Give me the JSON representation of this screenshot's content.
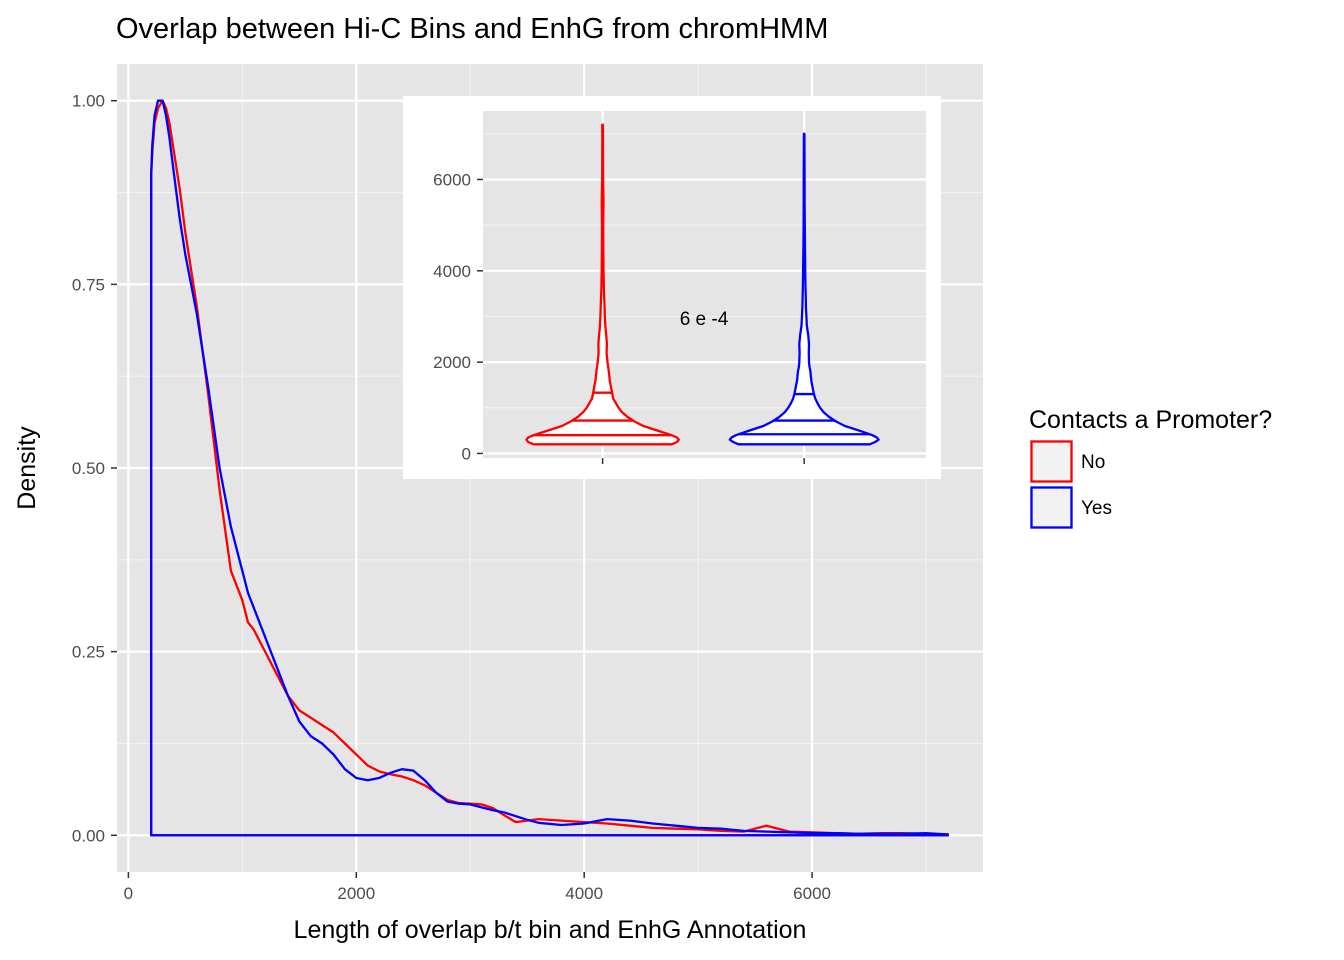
{
  "chart_data": [
    {
      "type": "line",
      "title": "Overlap between Hi-C Bins and EnhG from chromHMM",
      "xlabel": "Length of overlap b/t bin and EnhG Annotation",
      "ylabel": "Density",
      "xlim": [
        -100,
        7500
      ],
      "ylim": [
        -0.05,
        1.05
      ],
      "x_ticks": [
        0,
        2000,
        4000,
        6000
      ],
      "y_ticks": [
        0.0,
        0.25,
        0.5,
        0.75,
        1.0
      ],
      "x_tick_labels": [
        "0",
        "2000",
        "4000",
        "6000"
      ],
      "y_tick_labels": [
        "0.00",
        "0.25",
        "0.50",
        "0.75",
        "1.00"
      ],
      "grid": true,
      "legend": {
        "title": "Contacts a Promoter?",
        "position": "right",
        "entries": [
          {
            "label": "No",
            "color": "#ff0000"
          },
          {
            "label": "Yes",
            "color": "#0000ff"
          }
        ]
      },
      "series": [
        {
          "name": "No",
          "color": "#ff0000",
          "x": [
            200,
            210,
            230,
            260,
            300,
            330,
            360,
            400,
            450,
            500,
            550,
            600,
            700,
            800,
            900,
            1000,
            1050,
            1100,
            1200,
            1300,
            1400,
            1500,
            1600,
            1700,
            1800,
            1900,
            2000,
            2100,
            2200,
            2300,
            2400,
            2500,
            2600,
            2700,
            2800,
            2900,
            3000,
            3100,
            3200,
            3300,
            3400,
            3500,
            3600,
            3800,
            4000,
            4200,
            4400,
            4600,
            4800,
            5000,
            5200,
            5400,
            5600,
            5800,
            6000,
            6200,
            6400,
            6600,
            6800,
            7000,
            7200
          ],
          "y": [
            0.9,
            0.93,
            0.97,
            0.99,
            1.0,
            0.99,
            0.97,
            0.93,
            0.88,
            0.82,
            0.77,
            0.72,
            0.6,
            0.47,
            0.36,
            0.32,
            0.29,
            0.28,
            0.25,
            0.22,
            0.19,
            0.17,
            0.16,
            0.15,
            0.14,
            0.125,
            0.11,
            0.095,
            0.087,
            0.083,
            0.08,
            0.075,
            0.068,
            0.058,
            0.048,
            0.044,
            0.043,
            0.042,
            0.037,
            0.027,
            0.018,
            0.02,
            0.022,
            0.02,
            0.018,
            0.016,
            0.013,
            0.01,
            0.009,
            0.008,
            0.006,
            0.005,
            0.013,
            0.005,
            0.004,
            0.003,
            0.002,
            0.003,
            0.003,
            0.002,
            0.001
          ]
        },
        {
          "name": "Yes",
          "color": "#0000ff",
          "x": [
            200,
            210,
            230,
            260,
            300,
            330,
            360,
            400,
            450,
            500,
            550,
            600,
            700,
            800,
            900,
            1000,
            1050,
            1100,
            1200,
            1300,
            1400,
            1500,
            1600,
            1700,
            1800,
            1900,
            2000,
            2100,
            2200,
            2300,
            2400,
            2500,
            2600,
            2700,
            2800,
            2900,
            3000,
            3100,
            3200,
            3300,
            3400,
            3500,
            3600,
            3800,
            4000,
            4200,
            4400,
            4600,
            4800,
            5000,
            5200,
            5400,
            5600,
            5800,
            6000,
            6200,
            6400,
            6600,
            6800,
            7000,
            7200
          ],
          "y": [
            0.9,
            0.94,
            0.98,
            1.0,
            1.0,
            0.98,
            0.95,
            0.9,
            0.84,
            0.79,
            0.75,
            0.71,
            0.61,
            0.5,
            0.42,
            0.36,
            0.33,
            0.31,
            0.27,
            0.23,
            0.19,
            0.155,
            0.135,
            0.125,
            0.11,
            0.09,
            0.078,
            0.075,
            0.078,
            0.085,
            0.09,
            0.088,
            0.075,
            0.058,
            0.046,
            0.043,
            0.042,
            0.038,
            0.034,
            0.031,
            0.026,
            0.021,
            0.017,
            0.014,
            0.016,
            0.022,
            0.02,
            0.016,
            0.013,
            0.01,
            0.009,
            0.006,
            0.005,
            0.004,
            0.003,
            0.003,
            0.002,
            0.002,
            0.002,
            0.003,
            0.001
          ]
        }
      ]
    },
    {
      "type": "violin",
      "title": "",
      "xlabel": "",
      "ylabel": "",
      "ylim": [
        -100,
        7500
      ],
      "y_ticks": [
        0,
        2000,
        4000,
        6000
      ],
      "y_tick_labels": [
        "0",
        "2000",
        "4000",
        "6000"
      ],
      "grid": true,
      "annotation": "6 e -4",
      "groups": [
        {
          "label": "No",
          "color": "#ff0000",
          "y_min": 200,
          "y_max": 7200,
          "quantiles": [
            400,
            720,
            1330
          ],
          "profile_y": [
            200,
            250,
            300,
            350,
            400,
            500,
            600,
            700,
            800,
            900,
            1000,
            1100,
            1200,
            1300,
            1400,
            1500,
            1600,
            1700,
            1800,
            1900,
            2000,
            2200,
            2400,
            2600,
            2800,
            3000,
            3200,
            3400,
            3600,
            4000,
            4500,
            5000,
            5500,
            6000,
            6500,
            7200
          ],
          "profile_w": [
            0.78,
            0.84,
            0.86,
            0.84,
            0.78,
            0.62,
            0.46,
            0.36,
            0.28,
            0.22,
            0.18,
            0.15,
            0.12,
            0.11,
            0.1,
            0.09,
            0.08,
            0.075,
            0.07,
            0.062,
            0.055,
            0.045,
            0.048,
            0.04,
            0.03,
            0.025,
            0.022,
            0.018,
            0.014,
            0.01,
            0.008,
            0.007,
            0.01,
            0.005,
            0.004,
            0.003
          ]
        },
        {
          "label": "Yes",
          "color": "#0000ff",
          "y_min": 200,
          "y_max": 7000,
          "quantiles": [
            420,
            720,
            1300
          ],
          "profile_y": [
            200,
            250,
            300,
            350,
            400,
            500,
            600,
            700,
            800,
            900,
            1000,
            1100,
            1200,
            1300,
            1400,
            1500,
            1600,
            1700,
            1800,
            1900,
            2000,
            2200,
            2400,
            2600,
            2800,
            3000,
            3200,
            3400,
            3600,
            4000,
            4500,
            5000,
            5500,
            6000,
            6500,
            7000
          ],
          "profile_w": [
            0.74,
            0.8,
            0.84,
            0.82,
            0.77,
            0.62,
            0.46,
            0.36,
            0.28,
            0.22,
            0.18,
            0.15,
            0.125,
            0.11,
            0.1,
            0.09,
            0.08,
            0.075,
            0.07,
            0.06,
            0.055,
            0.052,
            0.055,
            0.045,
            0.03,
            0.025,
            0.02,
            0.018,
            0.015,
            0.012,
            0.009,
            0.007,
            0.005,
            0.005,
            0.004,
            0.003
          ]
        }
      ]
    }
  ]
}
